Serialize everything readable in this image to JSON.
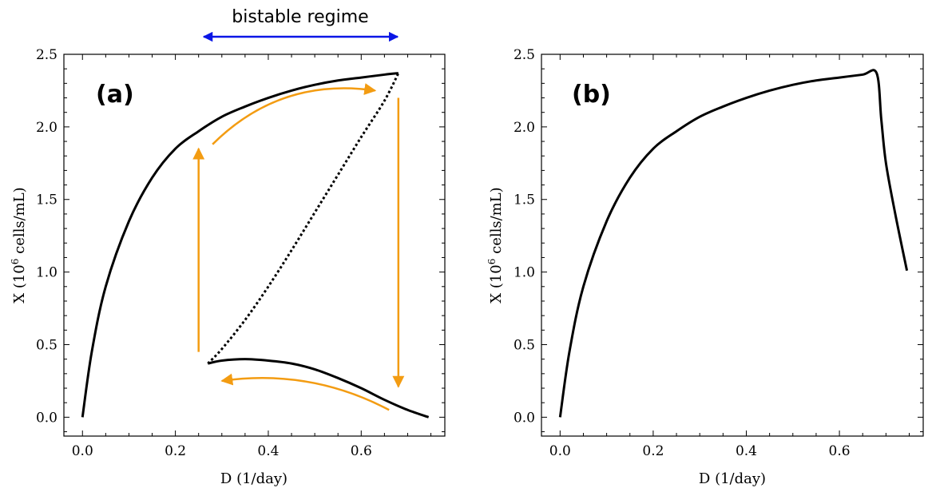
{
  "annotation": {
    "text": "bistable regime",
    "x_range": [
      0.26,
      0.68
    ],
    "arrow_color": "#0a16e6"
  },
  "colors": {
    "curve": "#000000",
    "arrows": "#f39c12"
  },
  "chart_data": [
    {
      "panel": "(a)",
      "type": "line",
      "xlabel": "D (1/day)",
      "ylabel_parts": [
        "X (10",
        "6",
        " cells/mL)"
      ],
      "xlim": [
        -0.04,
        0.78
      ],
      "ylim": [
        -0.13,
        2.5
      ],
      "xticks": [
        0.0,
        0.2,
        0.4,
        0.6
      ],
      "yticks": [
        0.0,
        0.5,
        1.0,
        1.5,
        2.0,
        2.5
      ],
      "xtick_labels": [
        "0.0",
        "0.2",
        "0.4",
        "0.6"
      ],
      "ytick_labels": [
        "0.0",
        "0.5",
        "1.0",
        "1.5",
        "2.0",
        "2.5"
      ],
      "series": [
        {
          "style": "solid",
          "points": [
            [
              0.0,
              0.0
            ],
            [
              0.02,
              0.45
            ],
            [
              0.05,
              0.9
            ],
            [
              0.1,
              1.35
            ],
            [
              0.15,
              1.65
            ],
            [
              0.2,
              1.85
            ],
            [
              0.25,
              1.97
            ],
            [
              0.3,
              2.07
            ],
            [
              0.35,
              2.14
            ],
            [
              0.4,
              2.2
            ],
            [
              0.45,
              2.25
            ],
            [
              0.5,
              2.29
            ],
            [
              0.55,
              2.32
            ],
            [
              0.6,
              2.34
            ],
            [
              0.65,
              2.36
            ],
            [
              0.68,
              2.37
            ]
          ]
        },
        {
          "style": "dotted",
          "points": [
            [
              0.27,
              0.37
            ],
            [
              0.3,
              0.47
            ],
            [
              0.35,
              0.67
            ],
            [
              0.4,
              0.9
            ],
            [
              0.45,
              1.15
            ],
            [
              0.5,
              1.41
            ],
            [
              0.55,
              1.67
            ],
            [
              0.6,
              1.93
            ],
            [
              0.65,
              2.18
            ],
            [
              0.68,
              2.37
            ]
          ]
        },
        {
          "style": "solid",
          "points": [
            [
              0.27,
              0.37
            ],
            [
              0.3,
              0.39
            ],
            [
              0.35,
              0.4
            ],
            [
              0.4,
              0.39
            ],
            [
              0.45,
              0.37
            ],
            [
              0.5,
              0.33
            ],
            [
              0.55,
              0.27
            ],
            [
              0.6,
              0.2
            ],
            [
              0.65,
              0.12
            ],
            [
              0.7,
              0.05
            ],
            [
              0.745,
              0.0
            ]
          ]
        }
      ],
      "arrows": [
        {
          "from": [
            0.25,
            0.45
          ],
          "to": [
            0.25,
            1.85
          ],
          "curve": 0
        },
        {
          "from": [
            0.68,
            2.2
          ],
          "to": [
            0.68,
            0.21
          ],
          "curve": 0
        },
        {
          "from": [
            0.28,
            1.88
          ],
          "to": [
            0.63,
            2.25
          ],
          "curve": 0.07
        },
        {
          "from": [
            0.66,
            0.05
          ],
          "to": [
            0.3,
            0.25
          ],
          "curve": 0.045
        }
      ]
    },
    {
      "panel": "(b)",
      "type": "line",
      "xlabel": "D (1/day)",
      "ylabel_parts": [
        "X (10",
        "6",
        " cells/mL)"
      ],
      "xlim": [
        -0.04,
        0.78
      ],
      "ylim": [
        -0.13,
        2.5
      ],
      "xticks": [
        0.0,
        0.2,
        0.4,
        0.6
      ],
      "yticks": [
        0.0,
        0.5,
        1.0,
        1.5,
        2.0,
        2.5
      ],
      "xtick_labels": [
        "0.0",
        "0.2",
        "0.4",
        "0.6"
      ],
      "ytick_labels": [
        "0.0",
        "0.5",
        "1.0",
        "1.5",
        "2.0",
        "2.5"
      ],
      "series": [
        {
          "style": "solid",
          "points": [
            [
              0.0,
              0.0
            ],
            [
              0.02,
              0.45
            ],
            [
              0.05,
              0.9
            ],
            [
              0.1,
              1.35
            ],
            [
              0.15,
              1.65
            ],
            [
              0.2,
              1.85
            ],
            [
              0.25,
              1.97
            ],
            [
              0.3,
              2.07
            ],
            [
              0.35,
              2.14
            ],
            [
              0.4,
              2.2
            ],
            [
              0.45,
              2.25
            ],
            [
              0.5,
              2.29
            ],
            [
              0.55,
              2.32
            ],
            [
              0.6,
              2.34
            ],
            [
              0.65,
              2.36
            ],
            [
              0.68,
              2.37
            ],
            [
              0.69,
              2.05
            ],
            [
              0.7,
              1.75
            ],
            [
              0.72,
              1.4
            ],
            [
              0.745,
              1.01
            ]
          ]
        }
      ],
      "arrows": []
    }
  ]
}
